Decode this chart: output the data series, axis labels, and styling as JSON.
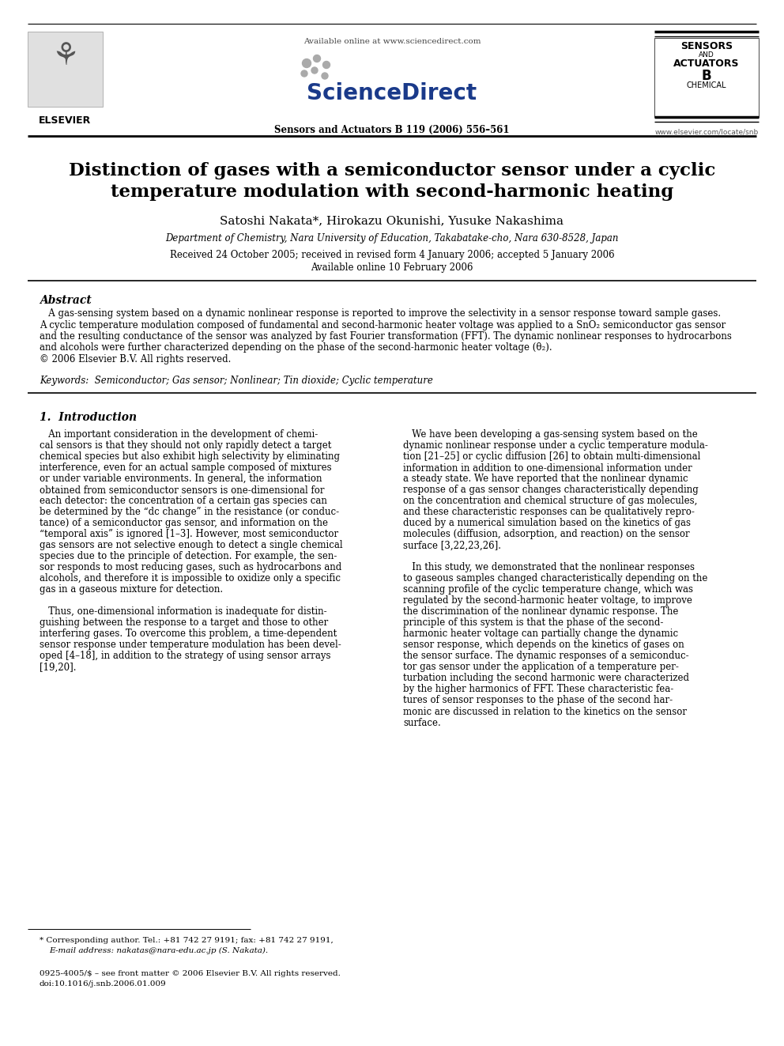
{
  "background_color": "#ffffff",
  "top_available_text": "Available online at www.sciencedirect.com",
  "journal_ref": "Sensors and Actuators B 119 (2006) 556–561",
  "elsevier_label": "ELSEVIER",
  "title_line1": "Distinction of gases with a semiconductor sensor under a cyclic",
  "title_line2": "temperature modulation with second-harmonic heating",
  "authors": "Satoshi Nakata*, Hirokazu Okunishi, Yusuke Nakashima",
  "affiliation": "Department of Chemistry, Nara University of Education, Takabatake-cho, Nara 630-8528, Japan",
  "received": "Received 24 October 2005; received in revised form 4 January 2006; accepted 5 January 2006",
  "available_online": "Available online 10 February 2006",
  "abstract_title": "Abstract",
  "keywords_label": "Keywords:",
  "keywords_text": "Semiconductor; Gas sensor; Nonlinear; Tin dioxide; Cyclic temperature",
  "section1_title": "1.  Introduction",
  "footer_line1": "0925-4005/$ – see front matter © 2006 Elsevier B.V. All rights reserved.",
  "footer_line2": "doi:10.1016/j.snb.2006.01.009",
  "website": "www.elsevier.com/locate/snb",
  "col1_lines": [
    "   An important consideration in the development of chemi-",
    "cal sensors is that they should not only rapidly detect a target",
    "chemical species but also exhibit high selectivity by eliminating",
    "interference, even for an actual sample composed of mixtures",
    "or under variable environments. In general, the information",
    "obtained from semiconductor sensors is one-dimensional for",
    "each detector: the concentration of a certain gas species can",
    "be determined by the “dc change” in the resistance (or conduc-",
    "tance) of a semiconductor gas sensor, and information on the",
    "“temporal axis” is ignored [1–3]. However, most semiconductor",
    "gas sensors are not selective enough to detect a single chemical",
    "species due to the principle of detection. For example, the sen-",
    "sor responds to most reducing gases, such as hydrocarbons and",
    "alcohols, and therefore it is impossible to oxidize only a specific",
    "gas in a gaseous mixture for detection.",
    "",
    "   Thus, one-dimensional information is inadequate for distin-",
    "guishing between the response to a target and those to other",
    "interfering gases. To overcome this problem, a time-dependent",
    "sensor response under temperature modulation has been devel-",
    "oped [4–18], in addition to the strategy of using sensor arrays",
    "[19,20]."
  ],
  "col2_lines": [
    "   We have been developing a gas-sensing system based on the",
    "dynamic nonlinear response under a cyclic temperature modula-",
    "tion [21–25] or cyclic diffusion [26] to obtain multi-dimensional",
    "information in addition to one-dimensional information under",
    "a steady state. We have reported that the nonlinear dynamic",
    "response of a gas sensor changes characteristically depending",
    "on the concentration and chemical structure of gas molecules,",
    "and these characteristic responses can be qualitatively repro-",
    "duced by a numerical simulation based on the kinetics of gas",
    "molecules (diffusion, adsorption, and reaction) on the sensor",
    "surface [3,22,23,26].",
    "",
    "   In this study, we demonstrated that the nonlinear responses",
    "to gaseous samples changed characteristically depending on the",
    "scanning profile of the cyclic temperature change, which was",
    "regulated by the second-harmonic heater voltage, to improve",
    "the discrimination of the nonlinear dynamic response. The",
    "principle of this system is that the phase of the second-",
    "harmonic heater voltage can partially change the dynamic",
    "sensor response, which depends on the kinetics of gases on",
    "the sensor surface. The dynamic responses of a semiconduc-",
    "tor gas sensor under the application of a temperature per-",
    "turbation including the second harmonic were characterized",
    "by the higher harmonics of FFT. These characteristic fea-",
    "tures of sensor responses to the phase of the second har-",
    "monic are discussed in relation to the kinetics on the sensor",
    "surface."
  ],
  "abstract_lines": [
    "   A gas-sensing system based on a dynamic nonlinear response is reported to improve the selectivity in a sensor response toward sample gases.",
    "A cyclic temperature modulation composed of fundamental and second-harmonic heater voltage was applied to a SnO₂ semiconductor gas sensor",
    "and the resulting conductance of the sensor was analyzed by fast Fourier transformation (FFT). The dynamic nonlinear responses to hydrocarbons",
    "and alcohols were further characterized depending on the phase of the second-harmonic heater voltage (θ₂).",
    "© 2006 Elsevier B.V. All rights reserved."
  ]
}
